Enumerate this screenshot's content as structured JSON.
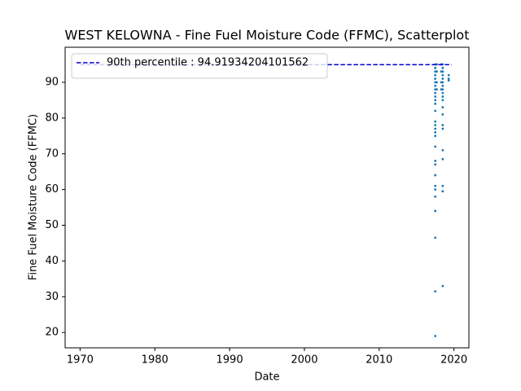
{
  "chart_data": {
    "type": "scatter",
    "title": "WEST KELOWNA - Fine Fuel Moisture Code (FFMC), Scatterplot",
    "xlabel": "Date",
    "ylabel": "Fine Fuel Moisture Code (FFMC)",
    "xlim": [
      1968,
      2022
    ],
    "xticks": [
      1970,
      1980,
      1990,
      2000,
      2010,
      2020
    ],
    "ylim": [
      15.7,
      99.8
    ],
    "yticks": [
      20,
      30,
      40,
      50,
      60,
      70,
      80,
      90
    ],
    "series": [
      {
        "name": "FFMC",
        "color": "#1f77b4",
        "x": [
          2017.5,
          2017.5,
          2017.5,
          2017.5,
          2017.5,
          2017.5,
          2017.5,
          2017.5,
          2017.5,
          2017.5,
          2017.5,
          2017.5,
          2017.5,
          2017.5,
          2017.5,
          2017.5,
          2017.5,
          2017.5,
          2017.5,
          2017.5,
          2017.5,
          2017.5,
          2017.5,
          2017.5,
          2017.5,
          2017.5,
          2017.5,
          2017.5,
          2017.5,
          2017.7,
          2017.7,
          2017.7,
          2017.7,
          2018.3,
          2018.3,
          2018.3,
          2018.3,
          2018.5,
          2018.5,
          2018.5,
          2018.5,
          2018.5,
          2018.5,
          2018.5,
          2018.5,
          2018.5,
          2018.5,
          2018.5,
          2018.5,
          2018.5,
          2018.5,
          2018.5,
          2018.5,
          2018.5,
          2018.5,
          2018.5,
          2018.5,
          2019.3,
          2019.3,
          2019.3
        ],
        "values": [
          95,
          94,
          93,
          92,
          91,
          90,
          89,
          88,
          87,
          86,
          85,
          84,
          82,
          79,
          78,
          77,
          76,
          75,
          72,
          68,
          67,
          64,
          61,
          60,
          58,
          54,
          46.5,
          31.5,
          19,
          95,
          93,
          90,
          88,
          95,
          93,
          90,
          88,
          95,
          94,
          93,
          92,
          91,
          90,
          89,
          88,
          87,
          86,
          85,
          83,
          81,
          78,
          77,
          71,
          68.5,
          61,
          59.5,
          33,
          92,
          91,
          90.5
        ]
      },
      {
        "name": "90th percentile : 94.91934204101562",
        "color": "#0000cd",
        "line": "dashed",
        "value": 94.91934204101562,
        "xmin": 1970,
        "xmax": 2019.7
      }
    ],
    "legend": "upper left"
  }
}
